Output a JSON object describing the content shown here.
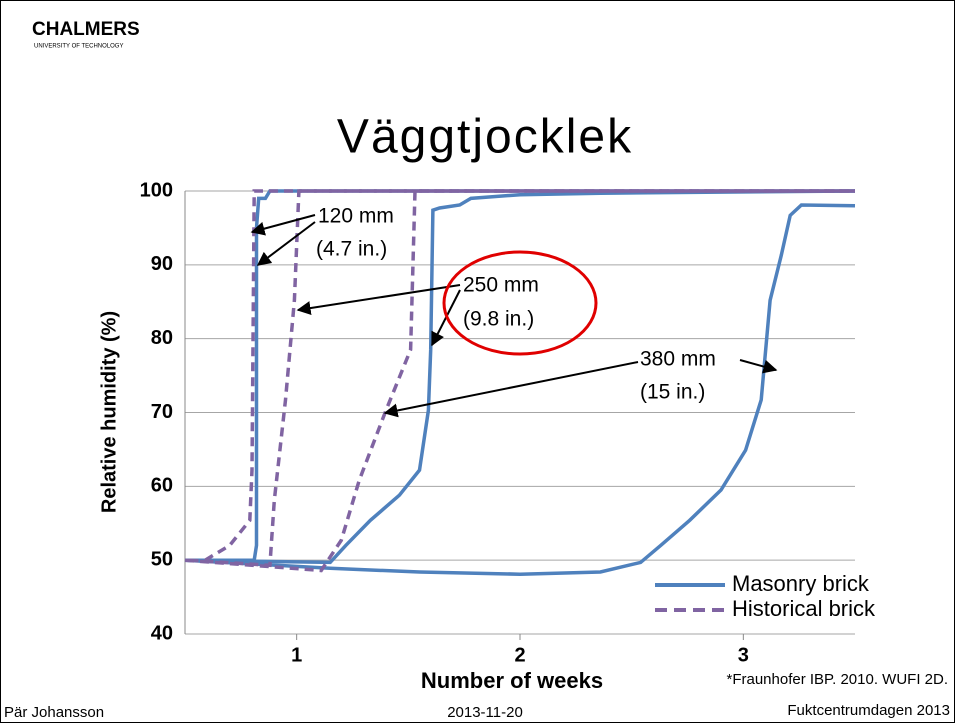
{
  "header": {
    "logo": "CHALMERS",
    "logo_sub": "UNIVERSITY OF TECHNOLOGY",
    "title": "Väggtjocklek"
  },
  "chart_data": {
    "type": "line",
    "ylabel": "Relative humidity (%)",
    "xlabel": "Number of weeks",
    "ylim": [
      40,
      100
    ],
    "yticks": [
      40,
      50,
      60,
      70,
      80,
      90,
      100
    ],
    "xlim": [
      0.5,
      3.5
    ],
    "xticks": [
      1,
      2,
      3
    ],
    "grid": true,
    "legend": "lower right",
    "series": [
      {
        "name": "Masonry brick",
        "color": "#4f81bd",
        "dash": false,
        "x": [
          0.5,
          0.81,
          0.82,
          0.82,
          0.83,
          0.86,
          0.88,
          3.5
        ],
        "values": [
          50,
          50,
          52,
          95,
          99,
          99,
          100,
          100
        ]
      },
      {
        "name": "Masonry brick",
        "color": "#4f81bd",
        "dash": false,
        "x": [
          0.5,
          1.15,
          1.22,
          1.33,
          1.46,
          1.55,
          1.59,
          1.6,
          1.61,
          1.64,
          1.73,
          1.78,
          2.0,
          2.36,
          3.5
        ],
        "values": [
          50,
          49.7,
          52,
          55.4,
          58.8,
          62.2,
          70.3,
          78.5,
          97.4,
          97.7,
          98.1,
          99,
          99.5,
          99.7,
          100
        ]
      },
      {
        "name": "Masonry brick",
        "color": "#4f81bd",
        "dash": false,
        "x": [
          0.5,
          1.15,
          1.55,
          2.0,
          2.36,
          2.54,
          2.63,
          2.76,
          2.9,
          3.01,
          3.08,
          3.12,
          3.17,
          3.21,
          3.26,
          3.5
        ],
        "values": [
          50,
          48.9,
          48.4,
          48.1,
          48.4,
          49.7,
          52,
          55.4,
          59.5,
          64.9,
          71.7,
          85.2,
          91.3,
          96.7,
          98.1,
          98
        ]
      },
      {
        "name": "Historical brick",
        "color": "#8064a2",
        "dash": true,
        "x": [
          0.59,
          0.7,
          0.79,
          0.8,
          0.81,
          0.84,
          3.5
        ],
        "values": [
          50,
          52,
          55.4,
          62.2,
          100,
          100,
          100
        ]
      },
      {
        "name": "Historical brick",
        "color": "#8064a2",
        "dash": true,
        "x": [
          0.52,
          0.88,
          0.9,
          0.95,
          0.99,
          1.01,
          3.5
        ],
        "values": [
          50,
          49.3,
          58.1,
          71.7,
          85.2,
          100,
          100
        ]
      },
      {
        "name": "Historical brick",
        "color": "#8064a2",
        "dash": true,
        "x": [
          0.5,
          1.11,
          1.2,
          1.28,
          1.4,
          1.51,
          1.53,
          3.5
        ],
        "values": [
          50,
          48.6,
          52.7,
          60.8,
          70.3,
          78.5,
          100,
          100
        ]
      }
    ],
    "annotations": [
      "120 mm",
      "(4.7 in.)",
      "250 mm",
      "(9.8 in.)",
      "380 mm",
      "(15 in.)"
    ],
    "source": "*Fraunhofer IBP. 2010. WUFI 2D."
  },
  "footer": {
    "author": "Pär Johansson",
    "date": "2013-11-20",
    "event": "Fuktcentrumdagen 2013"
  }
}
